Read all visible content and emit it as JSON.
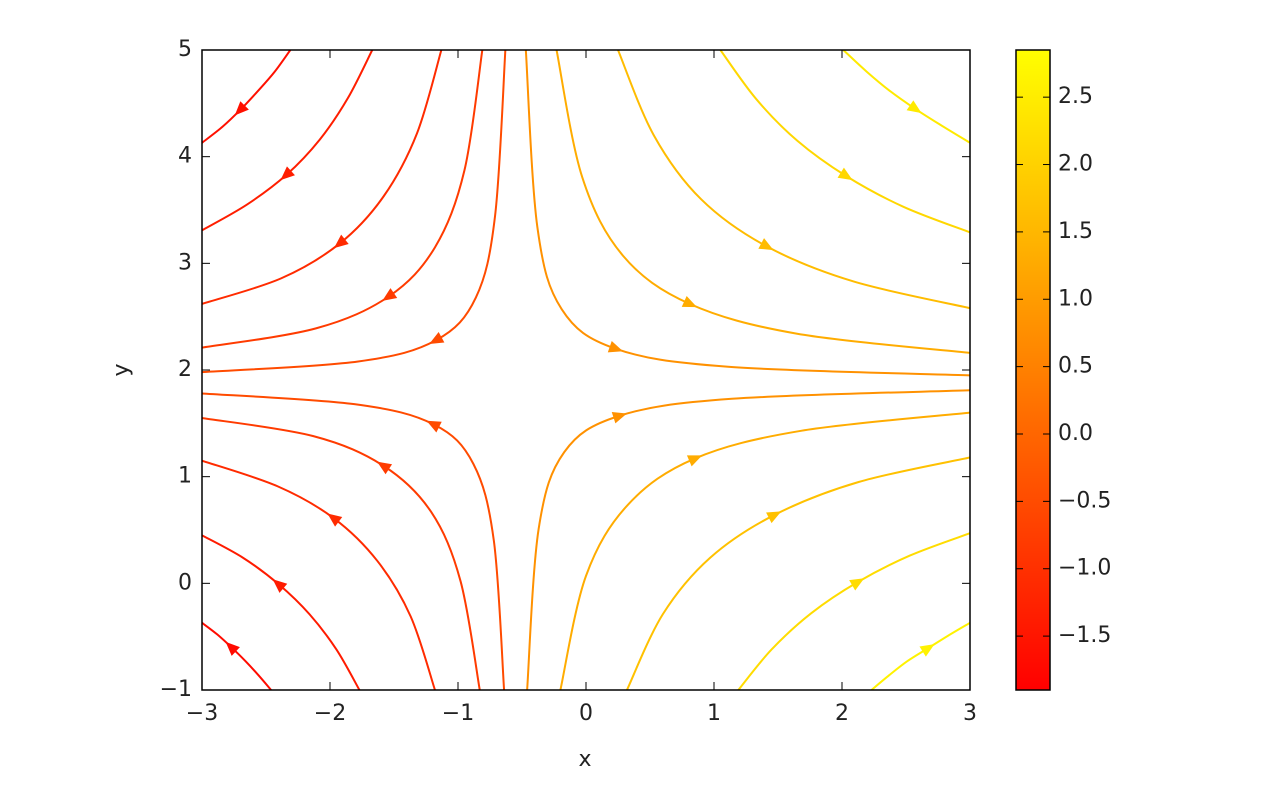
{
  "chart_data": {
    "type": "streamplot",
    "xlabel": "x",
    "ylabel": "y",
    "xlim": [
      -3,
      3
    ],
    "ylim": [
      -1,
      5
    ],
    "xticks": [
      {
        "value": -3,
        "label": "−3"
      },
      {
        "value": -2,
        "label": "−2"
      },
      {
        "value": -1,
        "label": "−1"
      },
      0,
      1,
      2,
      3
    ],
    "yticks": [
      {
        "value": -1,
        "label": "−1"
      },
      0,
      1,
      2,
      3,
      4,
      5
    ],
    "colorbar": {
      "colormap": "autumn",
      "lim": [
        -1.9,
        2.85
      ],
      "ticks": [
        {
          "value": -1.5,
          "label": "−1.5"
        },
        {
          "value": -1.0,
          "label": "−1.0"
        },
        {
          "value": -0.5,
          "label": "−0.5"
        },
        {
          "value": 0.0,
          "label": "0.0"
        },
        {
          "value": 0.5,
          "label": "0.5"
        },
        {
          "value": 1.0,
          "label": "1.0"
        },
        {
          "value": 1.5,
          "label": "1.5"
        },
        {
          "value": 2.0,
          "label": "2.0"
        },
        {
          "value": 2.5,
          "label": "2.5"
        }
      ]
    },
    "streamlines": [
      {
        "x": [
          -0.63,
          -0.71,
          -0.86,
          -1.17,
          -1.78,
          -3.0
        ],
        "y": [
          5.0,
          3.45,
          2.68,
          2.28,
          2.08,
          1.98
        ],
        "value": -0.5
      },
      {
        "x": [
          -0.81,
          -0.95,
          -1.18,
          -1.54,
          -2.11,
          -3.0
        ],
        "y": [
          5.0,
          3.87,
          3.15,
          2.69,
          2.39,
          2.21
        ],
        "value": -0.8
      },
      {
        "x": [
          -1.13,
          -1.32,
          -1.58,
          -1.92,
          -2.38,
          -3.0
        ],
        "y": [
          5.0,
          4.22,
          3.63,
          3.19,
          2.86,
          2.62
        ],
        "value": -1.1
      },
      {
        "x": [
          -1.67,
          -1.86,
          -2.08,
          -2.34,
          -2.65,
          -3.0
        ],
        "y": [
          5.0,
          4.55,
          4.16,
          3.83,
          3.55,
          3.31
        ],
        "value": -1.35
      },
      {
        "x": [
          -2.31,
          -2.43,
          -2.56,
          -2.7,
          -2.84,
          -3.0
        ],
        "y": [
          5.0,
          4.8,
          4.62,
          4.44,
          4.28,
          4.13
        ],
        "value": -1.6
      },
      {
        "x": [
          -0.47,
          -0.38,
          -0.19,
          0.23,
          1.11,
          3.0
        ],
        "y": [
          5.0,
          3.34,
          2.57,
          2.2,
          2.03,
          1.95
        ],
        "value": 0.8
      },
      {
        "x": [
          -0.23,
          -0.03,
          0.29,
          0.81,
          1.65,
          3.0
        ],
        "y": [
          5.0,
          3.81,
          3.07,
          2.62,
          2.34,
          2.16
        ],
        "value": 1.3
      },
      {
        "x": [
          0.25,
          0.53,
          0.9,
          1.41,
          2.09,
          3.0
        ],
        "y": [
          5.0,
          4.2,
          3.6,
          3.16,
          2.83,
          2.58
        ],
        "value": 1.6
      },
      {
        "x": [
          1.05,
          1.33,
          1.65,
          2.03,
          2.48,
          3.0
        ],
        "y": [
          5.0,
          4.54,
          4.15,
          3.82,
          3.53,
          3.29
        ],
        "value": 2.1
      },
      {
        "x": [
          2.01,
          2.19,
          2.37,
          2.57,
          2.78,
          3.0
        ],
        "y": [
          5.0,
          4.8,
          4.62,
          4.45,
          4.29,
          4.13
        ],
        "value": 2.45
      },
      {
        "x": [
          -0.64,
          -0.72,
          -0.88,
          -1.19,
          -1.81,
          -3.0
        ],
        "y": [
          -1.0,
          0.4,
          1.12,
          1.49,
          1.68,
          1.78
        ],
        "value": -0.5
      },
      {
        "x": [
          -0.83,
          -0.98,
          -1.21,
          -1.58,
          -2.13,
          -3.0
        ],
        "y": [
          -1.0,
          0.02,
          0.67,
          1.1,
          1.38,
          1.55
        ],
        "value": -0.8
      },
      {
        "x": [
          -1.18,
          -1.37,
          -1.63,
          -1.97,
          -2.41,
          -3.0
        ],
        "y": [
          -1.0,
          -0.31,
          0.21,
          0.61,
          0.91,
          1.15
        ],
        "value": -1.1
      },
      {
        "x": [
          -1.77,
          -1.95,
          -2.16,
          -2.4,
          -2.68,
          -3.0
        ],
        "y": [
          -1.0,
          -0.62,
          -0.29,
          -0.01,
          0.24,
          0.45
        ],
        "value": -1.4
      },
      {
        "x": [
          -2.46,
          -2.56,
          -2.66,
          -2.77,
          -2.88,
          -3.0
        ],
        "y": [
          -1.0,
          -0.86,
          -0.73,
          -0.6,
          -0.48,
          -0.37
        ],
        "value": -1.7
      },
      {
        "x": [
          -0.46,
          -0.37,
          -0.17,
          0.26,
          1.14,
          3.0
        ],
        "y": [
          -1.0,
          0.51,
          1.23,
          1.57,
          1.73,
          1.81
        ],
        "value": 0.8
      },
      {
        "x": [
          -0.2,
          0.0,
          0.33,
          0.85,
          1.68,
          3.0
        ],
        "y": [
          -1.0,
          0.07,
          0.74,
          1.17,
          1.43,
          1.6
        ],
        "value": 1.3
      },
      {
        "x": [
          0.32,
          0.6,
          0.97,
          1.47,
          2.13,
          3.0
        ],
        "y": [
          -1.0,
          -0.29,
          0.24,
          0.64,
          0.95,
          1.18
        ],
        "value": 1.7
      },
      {
        "x": [
          1.19,
          1.45,
          1.76,
          2.12,
          2.53,
          3.0
        ],
        "y": [
          -1.0,
          -0.62,
          -0.28,
          0.01,
          0.26,
          0.47
        ],
        "value": 2.2
      },
      {
        "x": [
          2.23,
          2.37,
          2.51,
          2.67,
          2.83,
          3.0
        ],
        "y": [
          -1.0,
          -0.86,
          -0.73,
          -0.61,
          -0.49,
          -0.37
        ],
        "value": 2.6
      }
    ]
  }
}
